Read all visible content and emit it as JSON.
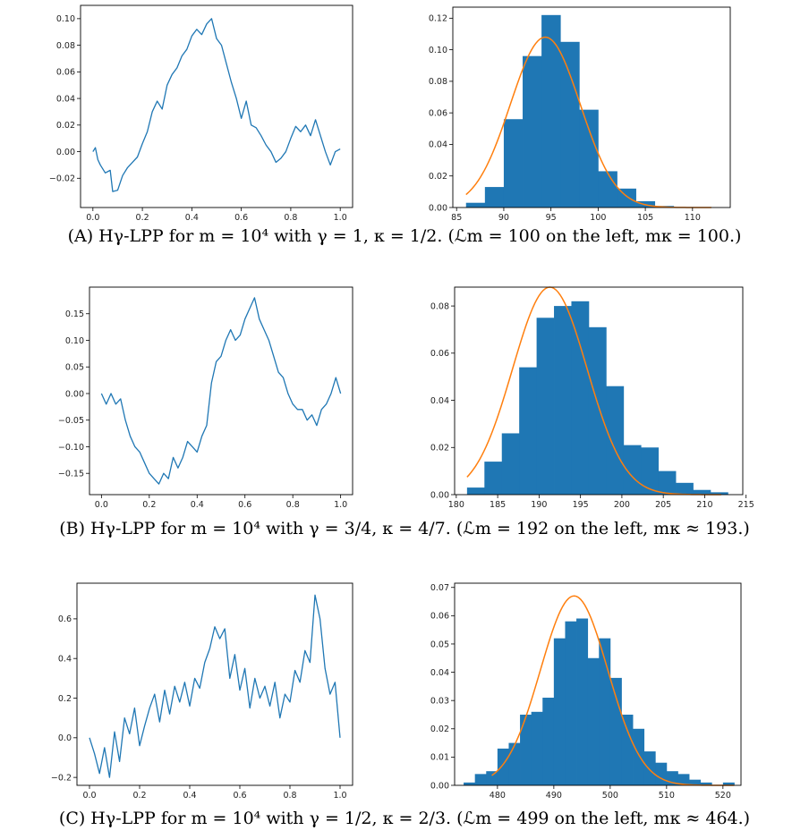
{
  "colors": {
    "line": "#1f77b4",
    "bar": "#1f77b4",
    "fit": "#ff7f0e",
    "axis": "#000000"
  },
  "captions": [
    "(A) Hγ-LPP for m = 10⁴ with γ = 1, κ = 1/2. (ℒm = 100 on the left, mκ = 100.)",
    "(B) Hγ-LPP for m = 10⁴ with γ = 3/4, κ = 4/7. (ℒm = 192 on the left, mκ ≈ 193.)",
    "(C) Hγ-LPP for m = 10⁴ with γ = 1/2, κ = 2/3. (ℒm = 499 on the left, mκ ≈ 464.)"
  ],
  "chart_data": [
    {
      "type": "line",
      "title": "",
      "xlabel": "",
      "ylabel": "",
      "xlim": [
        -0.05,
        1.05
      ],
      "ylim": [
        -0.042,
        0.11
      ],
      "xticks": [
        0.0,
        0.2,
        0.4,
        0.6,
        0.8,
        1.0
      ],
      "xtick_labels": [
        "0.0",
        "0.2",
        "0.4",
        "0.6",
        "0.8",
        "1.0"
      ],
      "yticks": [
        -0.02,
        0.0,
        0.02,
        0.04,
        0.06,
        0.08,
        0.1
      ],
      "ytick_labels": [
        "−0.02",
        "0.00",
        "0.02",
        "0.04",
        "0.06",
        "0.08",
        "0.10"
      ],
      "x": [
        0.0,
        0.01,
        0.02,
        0.03,
        0.05,
        0.07,
        0.08,
        0.1,
        0.12,
        0.14,
        0.16,
        0.18,
        0.2,
        0.22,
        0.24,
        0.26,
        0.28,
        0.3,
        0.32,
        0.34,
        0.36,
        0.38,
        0.4,
        0.42,
        0.44,
        0.46,
        0.48,
        0.5,
        0.52,
        0.54,
        0.56,
        0.58,
        0.6,
        0.62,
        0.64,
        0.66,
        0.68,
        0.7,
        0.72,
        0.74,
        0.76,
        0.78,
        0.8,
        0.82,
        0.84,
        0.86,
        0.88,
        0.9,
        0.92,
        0.94,
        0.96,
        0.98,
        1.0
      ],
      "y": [
        0.0,
        0.003,
        -0.006,
        -0.01,
        -0.016,
        -0.014,
        -0.03,
        -0.029,
        -0.018,
        -0.012,
        -0.008,
        -0.004,
        0.006,
        0.015,
        0.03,
        0.038,
        0.032,
        0.05,
        0.058,
        0.063,
        0.072,
        0.077,
        0.087,
        0.092,
        0.088,
        0.096,
        0.1,
        0.085,
        0.08,
        0.066,
        0.052,
        0.04,
        0.025,
        0.038,
        0.02,
        0.018,
        0.012,
        0.005,
        0.0,
        -0.008,
        -0.005,
        0.0,
        0.01,
        0.019,
        0.015,
        0.02,
        0.012,
        0.024,
        0.012,
        0.0,
        -0.01,
        0.0,
        0.002
      ]
    },
    {
      "type": "bar",
      "title": "",
      "xlabel": "",
      "ylabel": "",
      "xlim": [
        84.6,
        114
      ],
      "ylim": [
        0,
        0.127
      ],
      "xticks": [
        85,
        90,
        95,
        100,
        105,
        110
      ],
      "xtick_labels": [
        "85",
        "90",
        "95",
        "100",
        "105",
        "110"
      ],
      "yticks": [
        0.0,
        0.02,
        0.04,
        0.06,
        0.08,
        0.1,
        0.12
      ],
      "ytick_labels": [
        "0.00",
        "0.02",
        "0.04",
        "0.06",
        "0.08",
        "0.10",
        "0.12"
      ],
      "bin_edges": [
        86,
        88,
        90,
        92,
        94,
        96,
        98,
        100,
        102,
        104,
        106,
        108,
        110,
        112
      ],
      "values": [
        0.003,
        0.013,
        0.056,
        0.096,
        0.122,
        0.105,
        0.062,
        0.023,
        0.012,
        0.004,
        0.001,
        0.0,
        0.0
      ],
      "fit": {
        "mean": 94.4,
        "sd": 3.7,
        "amplitude": 0.108,
        "x_range": [
          86,
          112
        ]
      }
    },
    {
      "type": "line",
      "title": "",
      "xlabel": "",
      "ylabel": "",
      "xlim": [
        -0.05,
        1.05
      ],
      "ylim": [
        -0.19,
        0.2
      ],
      "xticks": [
        0.0,
        0.2,
        0.4,
        0.6,
        0.8,
        1.0
      ],
      "xtick_labels": [
        "0.0",
        "0.2",
        "0.4",
        "0.6",
        "0.8",
        "1.0"
      ],
      "yticks": [
        -0.15,
        -0.1,
        -0.05,
        0.0,
        0.05,
        0.1,
        0.15
      ],
      "ytick_labels": [
        "−0.15",
        "−0.10",
        "−0.05",
        "0.00",
        "0.05",
        "0.10",
        "0.15"
      ],
      "x": [
        0.0,
        0.02,
        0.04,
        0.06,
        0.08,
        0.1,
        0.12,
        0.14,
        0.16,
        0.18,
        0.2,
        0.22,
        0.24,
        0.26,
        0.28,
        0.3,
        0.32,
        0.34,
        0.36,
        0.38,
        0.4,
        0.42,
        0.44,
        0.46,
        0.48,
        0.5,
        0.52,
        0.54,
        0.56,
        0.58,
        0.6,
        0.62,
        0.64,
        0.66,
        0.68,
        0.7,
        0.72,
        0.74,
        0.76,
        0.78,
        0.8,
        0.82,
        0.84,
        0.86,
        0.88,
        0.9,
        0.92,
        0.94,
        0.96,
        0.98,
        1.0
      ],
      "y": [
        0.0,
        -0.02,
        0.0,
        -0.02,
        -0.01,
        -0.05,
        -0.08,
        -0.1,
        -0.11,
        -0.13,
        -0.15,
        -0.16,
        -0.17,
        -0.15,
        -0.16,
        -0.12,
        -0.14,
        -0.12,
        -0.09,
        -0.1,
        -0.11,
        -0.08,
        -0.06,
        0.02,
        0.06,
        0.07,
        0.1,
        0.12,
        0.1,
        0.11,
        0.14,
        0.16,
        0.18,
        0.14,
        0.12,
        0.1,
        0.07,
        0.04,
        0.03,
        0.0,
        -0.02,
        -0.03,
        -0.03,
        -0.05,
        -0.04,
        -0.06,
        -0.03,
        -0.02,
        0.0,
        0.03,
        0.0
      ]
    },
    {
      "type": "bar",
      "title": "",
      "xlabel": "",
      "ylabel": "",
      "xlim": [
        179.8,
        214.6
      ],
      "ylim": [
        0,
        0.088
      ],
      "xticks": [
        180,
        185,
        190,
        195,
        200,
        205,
        210,
        215
      ],
      "xtick_labels": [
        "180",
        "185",
        "190",
        "195",
        "200",
        "205",
        "210",
        "215"
      ],
      "yticks": [
        0.0,
        0.02,
        0.04,
        0.06,
        0.08
      ],
      "ytick_labels": [
        "0.00",
        "0.02",
        "0.04",
        "0.06",
        "0.08"
      ],
      "bin_edges": [
        181.3,
        183.4,
        185.5,
        187.6,
        189.7,
        191.8,
        193.9,
        196.0,
        198.1,
        200.2,
        202.3,
        204.4,
        206.5,
        208.6,
        210.7,
        212.8
      ],
      "values": [
        0.003,
        0.014,
        0.026,
        0.054,
        0.075,
        0.08,
        0.082,
        0.071,
        0.046,
        0.021,
        0.02,
        0.01,
        0.005,
        0.002,
        0.001
      ],
      "fit": {
        "mean": 191.3,
        "sd": 4.5,
        "amplitude": 0.088,
        "x_range": [
          181.3,
          212
        ]
      }
    },
    {
      "type": "line",
      "title": "",
      "xlabel": "",
      "ylabel": "",
      "xlim": [
        -0.05,
        1.05
      ],
      "ylim": [
        -0.24,
        0.78
      ],
      "xticks": [
        0.0,
        0.2,
        0.4,
        0.6,
        0.8,
        1.0
      ],
      "xtick_labels": [
        "0.0",
        "0.2",
        "0.4",
        "0.6",
        "0.8",
        "1.0"
      ],
      "yticks": [
        -0.2,
        0.0,
        0.2,
        0.4,
        0.6
      ],
      "ytick_labels": [
        "−0.2",
        "0.0",
        "0.2",
        "0.4",
        "0.6"
      ],
      "x": [
        0.0,
        0.02,
        0.04,
        0.06,
        0.08,
        0.1,
        0.12,
        0.14,
        0.16,
        0.18,
        0.2,
        0.22,
        0.24,
        0.26,
        0.28,
        0.3,
        0.32,
        0.34,
        0.36,
        0.38,
        0.4,
        0.42,
        0.44,
        0.46,
        0.48,
        0.5,
        0.52,
        0.54,
        0.56,
        0.58,
        0.6,
        0.62,
        0.64,
        0.66,
        0.68,
        0.7,
        0.72,
        0.74,
        0.76,
        0.78,
        0.8,
        0.82,
        0.84,
        0.86,
        0.88,
        0.9,
        0.92,
        0.94,
        0.96,
        0.98,
        1.0
      ],
      "y": [
        0.0,
        -0.08,
        -0.18,
        -0.05,
        -0.2,
        0.03,
        -0.12,
        0.1,
        0.02,
        0.15,
        -0.04,
        0.06,
        0.15,
        0.22,
        0.08,
        0.24,
        0.12,
        0.26,
        0.18,
        0.28,
        0.16,
        0.3,
        0.25,
        0.38,
        0.45,
        0.56,
        0.5,
        0.55,
        0.3,
        0.42,
        0.24,
        0.35,
        0.15,
        0.3,
        0.2,
        0.26,
        0.16,
        0.28,
        0.1,
        0.22,
        0.18,
        0.34,
        0.28,
        0.44,
        0.38,
        0.72,
        0.6,
        0.35,
        0.22,
        0.28,
        0.0
      ]
    },
    {
      "type": "bar",
      "title": "",
      "xlabel": "",
      "ylabel": "",
      "xlim": [
        472.4,
        523.2
      ],
      "ylim": [
        0,
        0.0715
      ],
      "xticks": [
        480,
        490,
        500,
        510,
        520
      ],
      "xtick_labels": [
        "480",
        "490",
        "500",
        "510",
        "520"
      ],
      "yticks": [
        0.0,
        0.01,
        0.02,
        0.03,
        0.04,
        0.05,
        0.06,
        0.07
      ],
      "ytick_labels": [
        "0.00",
        "0.01",
        "0.02",
        "0.03",
        "0.04",
        "0.05",
        "0.06",
        "0.07"
      ],
      "bin_edges": [
        474,
        476,
        478,
        480,
        482,
        484,
        486,
        488,
        490,
        492,
        494,
        496,
        498,
        500,
        502,
        504,
        506,
        508,
        510,
        512,
        514,
        516,
        518,
        520,
        522
      ],
      "values": [
        0.001,
        0.004,
        0.005,
        0.013,
        0.015,
        0.025,
        0.026,
        0.031,
        0.052,
        0.058,
        0.059,
        0.045,
        0.052,
        0.038,
        0.025,
        0.02,
        0.012,
        0.008,
        0.005,
        0.004,
        0.002,
        0.001,
        0.0,
        0.001
      ],
      "fit": {
        "mean": 493.6,
        "sd": 6.0,
        "amplitude": 0.067,
        "x_range": [
          479,
          522
        ]
      }
    }
  ]
}
